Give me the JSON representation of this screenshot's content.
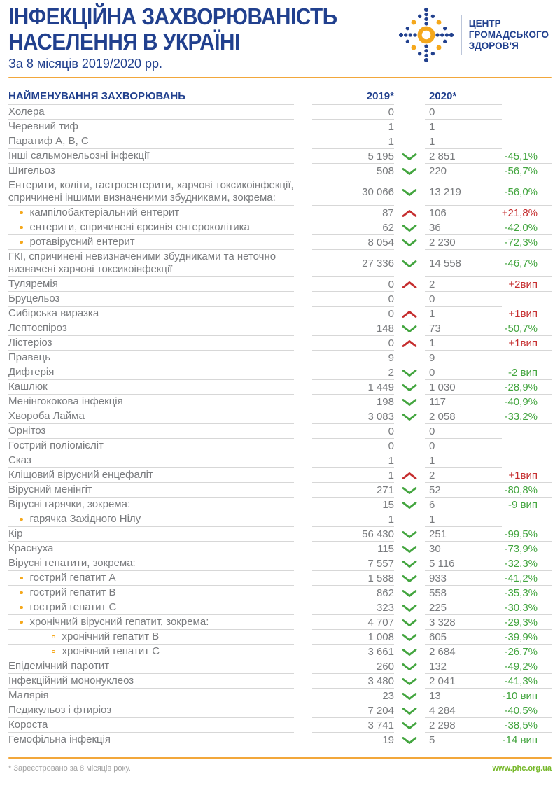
{
  "header": {
    "title_line1": "ІНФЕКЦІЙНА ЗАХВОРЮВАНІСТЬ",
    "title_line2": "НАСЕЛЕННЯ В УКРАЇНІ",
    "subtitle": "За 8 місяців 2019/2020 рр.",
    "logo": {
      "org_line1": "ЦЕНТР",
      "org_line2": "ГРОМАДСЬКОГО",
      "org_line3": "ЗДОРОВ’Я"
    }
  },
  "colors": {
    "brand_blue": "#21408e",
    "brand_orange": "#f5a81c",
    "decrease_green": "#43a53f",
    "increase_red": "#c52d2e",
    "body_gray": "#797b7e",
    "link_green": "#76b82a"
  },
  "chart_data": {
    "type": "table",
    "title": "ІНФЕКЦІЙНА ЗАХВОРЮВАНІСТЬ НАСЕЛЕННЯ В УКРАЇНІ",
    "subtitle": "За 8 місяців 2019/2020 рр.",
    "header": {
      "name": "НАЙМЕНУВАННЯ ЗАХВОРЮВАНЬ",
      "y2019": "2019*",
      "y2020": "2020*"
    },
    "rows": [
      {
        "name": "Холера",
        "indent": 0,
        "v2019": "0",
        "trend": "none",
        "v2020": "0",
        "change": ""
      },
      {
        "name": "Черевний тиф",
        "indent": 0,
        "v2019": "1",
        "trend": "none",
        "v2020": "1",
        "change": ""
      },
      {
        "name": "Паратиф А, В, С",
        "indent": 0,
        "v2019": "1",
        "trend": "none",
        "v2020": "1",
        "change": ""
      },
      {
        "name": "Інші сальмонельозні інфекції",
        "indent": 0,
        "v2019": "5 195",
        "trend": "down",
        "v2020": "2 851",
        "change": "-45,1%"
      },
      {
        "name": "Шигельоз",
        "indent": 0,
        "v2019": "508",
        "trend": "down",
        "v2020": "220",
        "change": "-56,7%"
      },
      {
        "name": "Ентерити, коліти, гастроентерити, харчові токсикоінфекції, спричинені іншими визначеними збудниками, зокрема:",
        "indent": 0,
        "v2019": "30 066",
        "trend": "down",
        "v2020": "13 219",
        "change": "-56,0%"
      },
      {
        "name": "кампілобактеріальний ентерит",
        "indent": 1,
        "v2019": "87",
        "trend": "up",
        "v2020": "106",
        "change": "+21,8%"
      },
      {
        "name": "ентерити, спричинені єрсинія ентероколітика",
        "indent": 1,
        "v2019": "62",
        "trend": "down",
        "v2020": "36",
        "change": "-42,0%"
      },
      {
        "name": "ротавірусний ентерит",
        "indent": 1,
        "v2019": "8 054",
        "trend": "down",
        "v2020": "2 230",
        "change": "-72,3%"
      },
      {
        "name": "ГКІ, спричинені невизначеними збудниками та неточно визначені харчові токсикоінфекції",
        "indent": 0,
        "v2019": "27 336",
        "trend": "down",
        "v2020": "14 558",
        "change": "-46,7%"
      },
      {
        "name": "Туляремія",
        "indent": 0,
        "v2019": "0",
        "trend": "up",
        "v2020": "2",
        "change": "+2вип"
      },
      {
        "name": "Бруцельоз",
        "indent": 0,
        "v2019": "0",
        "trend": "none",
        "v2020": "0",
        "change": ""
      },
      {
        "name": "Сибірська виразка",
        "indent": 0,
        "v2019": "0",
        "trend": "up",
        "v2020": "1",
        "change": "+1вип"
      },
      {
        "name": "Лептоспіроз",
        "indent": 0,
        "v2019": "148",
        "trend": "down",
        "v2020": "73",
        "change": "-50,7%"
      },
      {
        "name": "Лістеріоз",
        "indent": 0,
        "v2019": "0",
        "trend": "up",
        "v2020": "1",
        "change": "+1вип"
      },
      {
        "name": "Правець",
        "indent": 0,
        "v2019": "9",
        "trend": "none",
        "v2020": "9",
        "change": ""
      },
      {
        "name": "Дифтерія",
        "indent": 0,
        "v2019": "2",
        "trend": "down",
        "v2020": "0",
        "change": "-2 вип"
      },
      {
        "name": "Кашлюк",
        "indent": 0,
        "v2019": "1 449",
        "trend": "down",
        "v2020": "1 030",
        "change": "-28,9%"
      },
      {
        "name": "Менінгококова інфекція",
        "indent": 0,
        "v2019": "198",
        "trend": "down",
        "v2020": "117",
        "change": "-40,9%"
      },
      {
        "name": "Хвороба Лайма",
        "indent": 0,
        "v2019": "3 083",
        "trend": "down",
        "v2020": "2 058",
        "change": "-33,2%"
      },
      {
        "name": "Орнітоз",
        "indent": 0,
        "v2019": "0",
        "trend": "none",
        "v2020": "0",
        "change": ""
      },
      {
        "name": "Гострий поліомієліт",
        "indent": 0,
        "v2019": "0",
        "trend": "none",
        "v2020": "0",
        "change": ""
      },
      {
        "name": "Сказ",
        "indent": 0,
        "v2019": "1",
        "trend": "none",
        "v2020": "1",
        "change": ""
      },
      {
        "name": "Кліщовий вірусний енцефаліт",
        "indent": 0,
        "v2019": "1",
        "trend": "up",
        "v2020": "2",
        "change": "+1вип"
      },
      {
        "name": "Вірусний менінгіт",
        "indent": 0,
        "v2019": "271",
        "trend": "down",
        "v2020": "52",
        "change": "-80,8%"
      },
      {
        "name": "Вірусні гарячки, зокрема:",
        "indent": 0,
        "v2019": "15",
        "trend": "down",
        "v2020": "6",
        "change": "-9 вип"
      },
      {
        "name": "гарячка Західного Нілу",
        "indent": 1,
        "v2019": "1",
        "trend": "none",
        "v2020": "1",
        "change": ""
      },
      {
        "name": "Кір",
        "indent": 0,
        "v2019": "56 430",
        "trend": "down",
        "v2020": "251",
        "change": "-99,5%"
      },
      {
        "name": "Краснуха",
        "indent": 0,
        "v2019": "115",
        "trend": "down",
        "v2020": "30",
        "change": "-73,9%"
      },
      {
        "name": "Вірусні гепатити, зокрема:",
        "indent": 0,
        "v2019": "7 557",
        "trend": "down",
        "v2020": "5 116",
        "change": "-32,3%"
      },
      {
        "name": "гострий гепатит А",
        "indent": 1,
        "v2019": "1 588",
        "trend": "down",
        "v2020": "933",
        "change": "-41,2%"
      },
      {
        "name": "гострий гепатит В",
        "indent": 1,
        "v2019": "862",
        "trend": "down",
        "v2020": "558",
        "change": "-35,3%"
      },
      {
        "name": "гострий гепатит С",
        "indent": 1,
        "v2019": "323",
        "trend": "down",
        "v2020": "225",
        "change": "-30,3%"
      },
      {
        "name": "хронічний вірусний гепатит, зокрема:",
        "indent": 1,
        "v2019": "4 707",
        "trend": "down",
        "v2020": "3 328",
        "change": "-29,3%"
      },
      {
        "name": "хронічний гепатит В",
        "indent": 2,
        "v2019": "1 008",
        "trend": "down",
        "v2020": "605",
        "change": "-39,9%"
      },
      {
        "name": "хронічний гепатит С",
        "indent": 2,
        "v2019": "3 661",
        "trend": "down",
        "v2020": "2 684",
        "change": "-26,7%"
      },
      {
        "name": "Епідемічний паротит",
        "indent": 0,
        "v2019": "260",
        "trend": "down",
        "v2020": "132",
        "change": "-49,2%"
      },
      {
        "name": "Інфекційний мононуклеоз",
        "indent": 0,
        "v2019": "3 480",
        "trend": "down",
        "v2020": "2 041",
        "change": "-41,3%"
      },
      {
        "name": "Малярія",
        "indent": 0,
        "v2019": "23",
        "trend": "down",
        "v2020": "13",
        "change": "-10 вип"
      },
      {
        "name": "Педикульоз і фтиріоз",
        "indent": 0,
        "v2019": "7 204",
        "trend": "down",
        "v2020": "4 284",
        "change": "-40,5%"
      },
      {
        "name": "Короста",
        "indent": 0,
        "v2019": "3 741",
        "trend": "down",
        "v2020": "2 298",
        "change": "-38,5%"
      },
      {
        "name": "Гемофільна інфекція",
        "indent": 0,
        "v2019": "19",
        "trend": "down",
        "v2020": "5",
        "change": "-14 вип"
      }
    ]
  },
  "footer": {
    "note": "* Зареєстровано за 8 місяців року.",
    "link": "www.phc.org.ua"
  }
}
